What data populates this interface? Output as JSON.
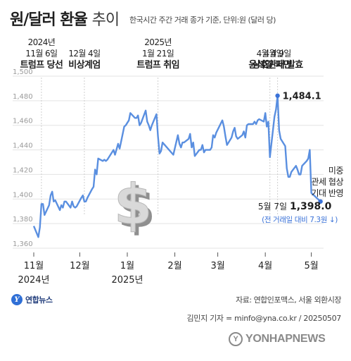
{
  "header": {
    "title_main": "원/달러 환율",
    "title_sub": "추이",
    "subtitle": "한국시간 주간 거래 종가 기준, 단위:원 (달러 당)"
  },
  "chart_data": {
    "type": "line",
    "ylim": [
      1360,
      1500
    ],
    "yticks": [
      1360,
      1380,
      1400,
      1420,
      1440,
      1460,
      1480,
      1500
    ],
    "ytick_labels": [
      "1,360",
      "1,380",
      "1,400",
      "1,420",
      "1,440",
      "1,460",
      "1,480",
      "1,500"
    ],
    "xlim": [
      "2024-11-01",
      "2025-05-09"
    ],
    "xticks": [
      {
        "date": "2024-11-01",
        "label": "11월",
        "year": "2024년"
      },
      {
        "date": "2024-12-01",
        "label": "12월",
        "year": ""
      },
      {
        "date": "2025-01-01",
        "label": "1월",
        "year": "2025년"
      },
      {
        "date": "2025-02-01",
        "label": "2월",
        "year": ""
      },
      {
        "date": "2025-03-01",
        "label": "3월",
        "year": ""
      },
      {
        "date": "2025-04-01",
        "label": "4월",
        "year": ""
      },
      {
        "date": "2025-05-01",
        "label": "5월",
        "year": ""
      }
    ],
    "series": [
      {
        "color": "#5a8fe0",
        "points": [
          [
            "2024-11-01",
            1378
          ],
          [
            "2024-11-04",
            1369
          ],
          [
            "2024-11-05",
            1377
          ],
          [
            "2024-11-06",
            1396
          ],
          [
            "2024-11-07",
            1396
          ],
          [
            "2024-11-08",
            1387
          ],
          [
            "2024-11-11",
            1395
          ],
          [
            "2024-11-12",
            1403
          ],
          [
            "2024-11-13",
            1406
          ],
          [
            "2024-11-14",
            1398
          ],
          [
            "2024-11-15",
            1399
          ],
          [
            "2024-11-18",
            1391
          ],
          [
            "2024-11-19",
            1395
          ],
          [
            "2024-11-20",
            1393
          ],
          [
            "2024-11-21",
            1398
          ],
          [
            "2024-11-22",
            1398
          ],
          [
            "2024-11-25",
            1393
          ],
          [
            "2024-11-26",
            1398
          ],
          [
            "2024-11-27",
            1394
          ],
          [
            "2024-11-28",
            1393
          ],
          [
            "2024-11-29",
            1394
          ],
          [
            "2024-12-02",
            1401
          ],
          [
            "2024-12-03",
            1403
          ],
          [
            "2024-12-04",
            1398
          ],
          [
            "2024-12-05",
            1398
          ],
          [
            "2024-12-06",
            1401
          ],
          [
            "2024-12-09",
            1408
          ],
          [
            "2024-12-10",
            1410
          ],
          [
            "2024-12-11",
            1424
          ],
          [
            "2024-12-12",
            1420
          ],
          [
            "2024-12-13",
            1433
          ],
          [
            "2024-12-16",
            1431
          ],
          [
            "2024-12-17",
            1432
          ],
          [
            "2024-12-18",
            1431
          ],
          [
            "2024-12-19",
            1432
          ],
          [
            "2024-12-20",
            1434
          ],
          [
            "2024-12-23",
            1440
          ],
          [
            "2024-12-24",
            1436
          ],
          [
            "2024-12-26",
            1445
          ],
          [
            "2024-12-27",
            1441
          ],
          [
            "2024-12-30",
            1459
          ],
          [
            "2024-12-31",
            1460
          ],
          [
            "2025-01-02",
            1464
          ],
          [
            "2025-01-03",
            1470
          ],
          [
            "2025-01-06",
            1466
          ],
          [
            "2025-01-07",
            1466
          ],
          [
            "2025-01-08",
            1468
          ],
          [
            "2025-01-09",
            1460
          ],
          [
            "2025-01-10",
            1462
          ],
          [
            "2025-01-13",
            1472
          ],
          [
            "2025-01-14",
            1463
          ],
          [
            "2025-01-15",
            1460
          ],
          [
            "2025-01-16",
            1456
          ],
          [
            "2025-01-17",
            1460
          ],
          [
            "2025-01-20",
            1469
          ],
          [
            "2025-01-21",
            1451
          ],
          [
            "2025-01-22",
            1437
          ],
          [
            "2025-01-23",
            1439
          ],
          [
            "2025-01-24",
            1446
          ],
          [
            "2025-01-31",
            1436
          ],
          [
            "2025-02-03",
            1452
          ],
          [
            "2025-02-04",
            1445
          ],
          [
            "2025-02-05",
            1442
          ],
          [
            "2025-02-06",
            1446
          ],
          [
            "2025-02-07",
            1446
          ],
          [
            "2025-02-10",
            1449
          ],
          [
            "2025-02-11",
            1453
          ],
          [
            "2025-02-12",
            1442
          ],
          [
            "2025-02-13",
            1446
          ],
          [
            "2025-02-14",
            1435
          ],
          [
            "2025-02-17",
            1440
          ],
          [
            "2025-02-18",
            1440
          ],
          [
            "2025-02-19",
            1444
          ],
          [
            "2025-02-20",
            1438
          ],
          [
            "2025-02-21",
            1440
          ],
          [
            "2025-02-24",
            1440
          ],
          [
            "2025-02-25",
            1442
          ],
          [
            "2025-02-26",
            1452
          ],
          [
            "2025-02-27",
            1450
          ],
          [
            "2025-02-28",
            1454
          ],
          [
            "2025-03-04",
            1464
          ],
          [
            "2025-03-05",
            1459
          ],
          [
            "2025-03-06",
            1451
          ],
          [
            "2025-03-07",
            1444
          ],
          [
            "2025-03-10",
            1450
          ],
          [
            "2025-03-11",
            1455
          ],
          [
            "2025-03-12",
            1458
          ],
          [
            "2025-03-13",
            1451
          ],
          [
            "2025-03-14",
            1449
          ],
          [
            "2025-03-17",
            1452
          ],
          [
            "2025-03-18",
            1455
          ],
          [
            "2025-03-19",
            1450
          ],
          [
            "2025-03-20",
            1460
          ],
          [
            "2025-03-21",
            1461
          ],
          [
            "2025-03-24",
            1461
          ],
          [
            "2025-03-25",
            1463
          ],
          [
            "2025-03-26",
            1461
          ],
          [
            "2025-03-27",
            1464
          ],
          [
            "2025-03-28",
            1465
          ],
          [
            "2025-03-31",
            1463
          ],
          [
            "2025-04-01",
            1470
          ],
          [
            "2025-04-02",
            1459
          ],
          [
            "2025-04-03",
            1463
          ],
          [
            "2025-04-04",
            1434
          ],
          [
            "2025-04-07",
            1467
          ],
          [
            "2025-04-08",
            1473
          ],
          [
            "2025-04-09",
            1484.1
          ],
          [
            "2025-04-10",
            1456
          ],
          [
            "2025-04-11",
            1449
          ],
          [
            "2025-04-14",
            1443
          ],
          [
            "2025-04-15",
            1425
          ],
          [
            "2025-04-16",
            1418
          ],
          [
            "2025-04-17",
            1418
          ],
          [
            "2025-04-18",
            1422
          ],
          [
            "2025-04-21",
            1427
          ],
          [
            "2025-04-22",
            1424
          ],
          [
            "2025-04-23",
            1420
          ],
          [
            "2025-04-24",
            1420
          ],
          [
            "2025-04-25",
            1427
          ],
          [
            "2025-04-28",
            1431
          ],
          [
            "2025-04-29",
            1433
          ],
          [
            "2025-04-30",
            1440
          ],
          [
            "2025-05-01",
            1405
          ],
          [
            "2025-05-07",
            1398.0
          ]
        ]
      }
    ],
    "annotations": [
      {
        "date": "2024-11-06",
        "lines": [
          "2024년",
          "11월 6일",
          "트럼프 당선"
        ]
      },
      {
        "date": "2024-12-04",
        "lines": [
          "12월 4일",
          "비상계엄"
        ]
      },
      {
        "date": "2025-01-21",
        "lines": [
          "2025년",
          "1월 21일",
          "트럼프 취임"
        ]
      },
      {
        "date": "2025-04-04",
        "lines": [
          "4월 4일",
          "윤석열 파면"
        ]
      },
      {
        "date": "2025-04-09",
        "lines": [
          "4월 9일",
          "상호관세 발효"
        ]
      }
    ],
    "peak": {
      "label": "1,484.1"
    },
    "last": {
      "date_label": "5월 7일",
      "value_label": "1,398.0",
      "change_note": "(전 거래일 대비 7.3원 ↓)",
      "event_lines": [
        "미중",
        "관세 협상",
        "기대 반영"
      ]
    }
  },
  "footer": {
    "logo_text": "연합뉴스",
    "source": "자료: 연합인포맥스, 서울 외환시장",
    "credit": "김민지 기자 = minfo@yna.co.kr / 20250507",
    "watermark": "YONHAPNEWS"
  },
  "colors": {
    "line": "#5a8fe0",
    "grid": "#e3e3e3",
    "ticks": "#9a9a9a",
    "highlight": "#3a72d8"
  }
}
